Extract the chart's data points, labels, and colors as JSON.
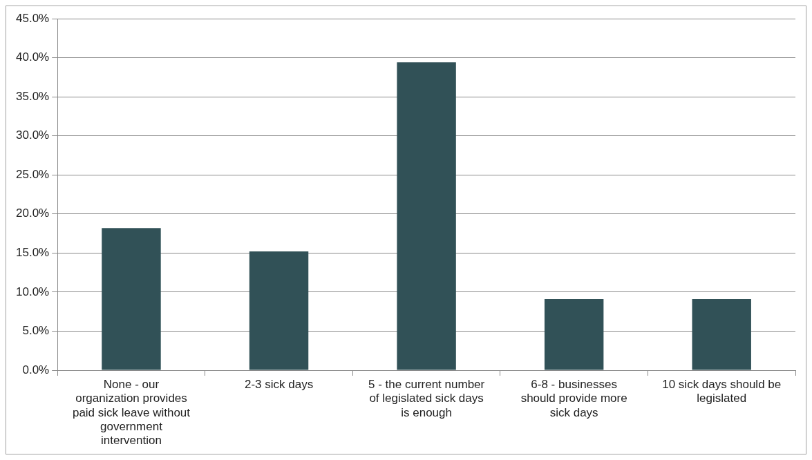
{
  "chart_data": {
    "type": "bar",
    "categories": [
      "None - our organization provides paid sick leave without government intervention",
      "2-3 sick days",
      "5 - the current number of legislated sick days is enough",
      "6-8 - businesses should provide more sick days",
      "10 sick days should be legislated"
    ],
    "values": [
      18.2,
      15.2,
      39.4,
      9.1,
      9.1
    ],
    "color": "#315157",
    "ylim": [
      0,
      45
    ],
    "yticks": [
      {
        "value": 0,
        "label": "0.0%"
      },
      {
        "value": 5,
        "label": "5.0%"
      },
      {
        "value": 10,
        "label": "10.0%"
      },
      {
        "value": 15,
        "label": "15.0%"
      },
      {
        "value": 20,
        "label": "20.0%"
      },
      {
        "value": 25,
        "label": "25.0%"
      },
      {
        "value": 30,
        "label": "30.0%"
      },
      {
        "value": 35,
        "label": "35.0%"
      },
      {
        "value": 40,
        "label": "40.0%"
      },
      {
        "value": 45,
        "label": "45.0%"
      }
    ],
    "grid": "y",
    "legend": false
  }
}
